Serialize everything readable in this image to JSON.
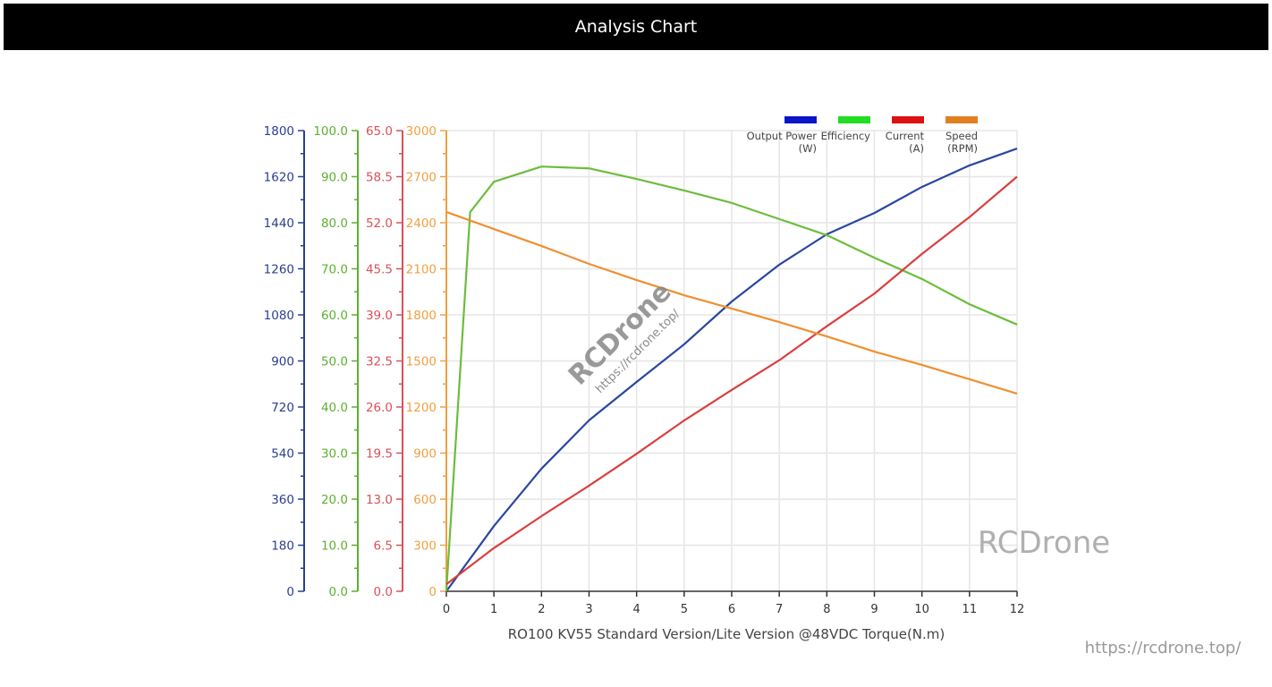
{
  "header": {
    "title": "Analysis Chart"
  },
  "watermarks": {
    "diag_brand": "RCDrone",
    "diag_url": "https://rcdrone.top/",
    "corner_brand": "RCDrone",
    "corner_url": "https://rcdrone.top/"
  },
  "chart_data": {
    "type": "line",
    "xlabel": "RO100 KV55 Standard Version/Lite Version @48VDC Torque(N.m)",
    "x_ticks": [
      0,
      1,
      2,
      3,
      4,
      5,
      6,
      7,
      8,
      9,
      10,
      11,
      12
    ],
    "xlim": [
      0,
      12
    ],
    "grid": true,
    "legend_placement": "top-right",
    "axes": [
      {
        "id": "power",
        "color": "#2a3f8f",
        "ylim": [
          0,
          1800
        ],
        "ticks": [
          "0",
          "180",
          "360",
          "540",
          "720",
          "900",
          "1080",
          "1260",
          "1440",
          "1620",
          "1800"
        ]
      },
      {
        "id": "eff",
        "color": "#5cb030",
        "ylim": [
          0,
          100
        ],
        "ticks": [
          "0.0",
          "10.0",
          "20.0",
          "30.0",
          "40.0",
          "50.0",
          "60.0",
          "70.0",
          "80.0",
          "90.0",
          "100.0"
        ]
      },
      {
        "id": "current",
        "color": "#d9505a",
        "ylim": [
          0,
          65
        ],
        "ticks": [
          "0.0",
          "6.5",
          "13.0",
          "19.5",
          "26.0",
          "32.5",
          "39.0",
          "45.5",
          "52.0",
          "58.5",
          "65.0"
        ]
      },
      {
        "id": "speed",
        "color": "#f0a040",
        "ylim": [
          0,
          3000
        ],
        "ticks": [
          "0",
          "300",
          "600",
          "900",
          "1200",
          "1500",
          "1800",
          "2100",
          "2400",
          "2700",
          "3000"
        ]
      }
    ],
    "series": [
      {
        "name": "Output Power",
        "unit": "(W)",
        "axis": "power",
        "color": "#2a47a0",
        "legend_color": "#0a14c8",
        "x": [
          0,
          1,
          2,
          3,
          4,
          5,
          6,
          7,
          8,
          9,
          10,
          11,
          12
        ],
        "y": [
          0,
          255,
          479,
          668,
          818,
          965,
          1132,
          1276,
          1395,
          1478,
          1580,
          1664,
          1730
        ]
      },
      {
        "name": "Efficiency",
        "unit": "",
        "axis": "eff",
        "color": "#6cbd3c",
        "legend_color": "#22dd22",
        "x": [
          0,
          0.5,
          1,
          2,
          3,
          4,
          5,
          6,
          7,
          8,
          9,
          10,
          11,
          12
        ],
        "y": [
          0,
          82.3,
          88.9,
          92.2,
          91.8,
          89.5,
          87,
          84.3,
          80.8,
          77.3,
          72.4,
          67.8,
          62.3,
          57.9
        ]
      },
      {
        "name": "Current",
        "unit": "(A)",
        "axis": "current",
        "color": "#d94040",
        "legend_color": "#dd1111",
        "x": [
          0,
          1,
          2,
          3,
          4,
          5,
          6,
          7,
          8,
          9,
          10,
          11,
          12
        ],
        "y": [
          1.0,
          6.1,
          10.6,
          14.9,
          19.4,
          24.1,
          28.4,
          32.6,
          37.4,
          42.0,
          47.6,
          52.8,
          58.5
        ]
      },
      {
        "name": "Speed",
        "unit": "(RPM)",
        "axis": "speed",
        "color": "#ee9030",
        "legend_color": "#e08020",
        "x": [
          0,
          1,
          2,
          3,
          4,
          5,
          6,
          7,
          8,
          9,
          10,
          11,
          12
        ],
        "y": [
          2470,
          2359,
          2249,
          2132,
          2027,
          1928,
          1841,
          1753,
          1660,
          1561,
          1474,
          1381,
          1287
        ]
      }
    ]
  }
}
